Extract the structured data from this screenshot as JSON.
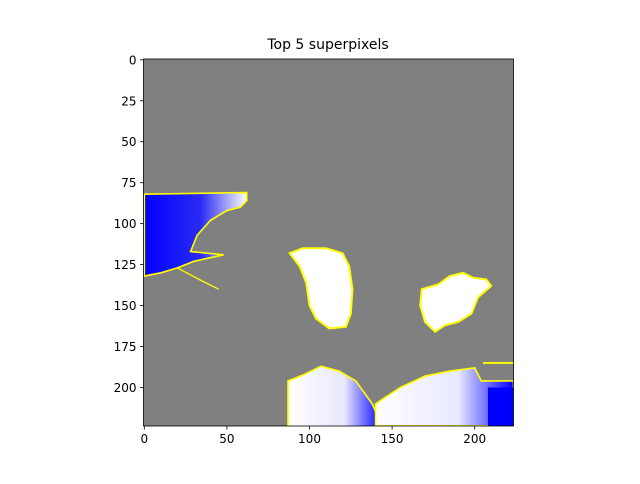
{
  "chart_data": {
    "type": "image",
    "title": "Top 5 superpixels",
    "xlim": [
      -0.5,
      223.5
    ],
    "ylim": [
      223.5,
      -0.5
    ],
    "xticks": [
      0,
      50,
      100,
      150,
      200
    ],
    "yticks": [
      0,
      25,
      50,
      75,
      100,
      125,
      150,
      175,
      200
    ]
  }
}
